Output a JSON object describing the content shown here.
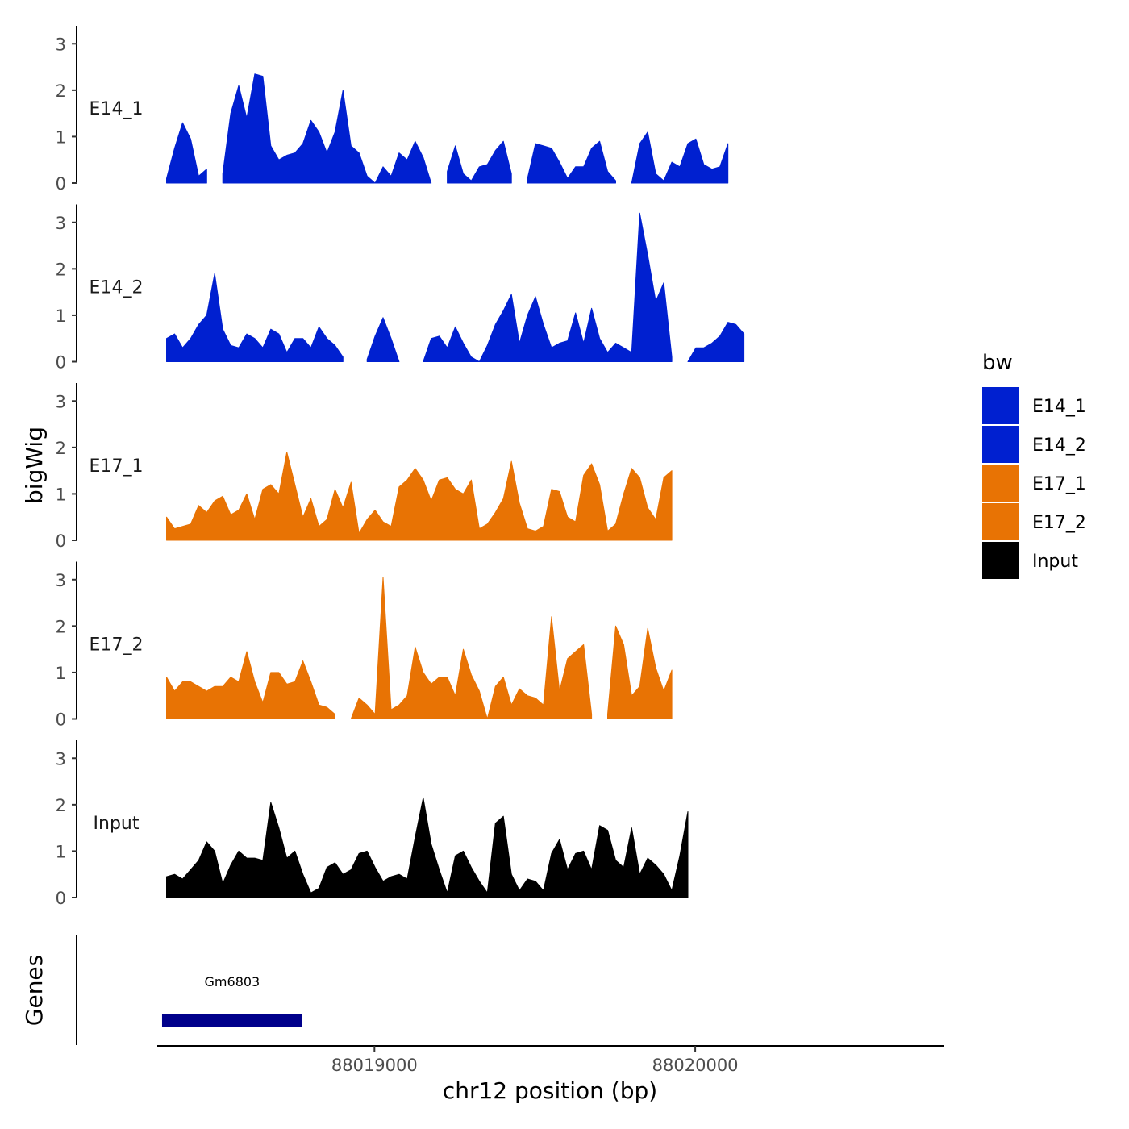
{
  "chart_data": {
    "type": "area",
    "xlabel": "chr12 position (bp)",
    "ylabel": "bigWig",
    "genes_label": "Genes",
    "xlim": [
      88018323,
      88020774
    ],
    "ylim": [
      0,
      3.3
    ],
    "y_ticks": [
      "0",
      "1",
      "2",
      "3"
    ],
    "x_ticks": [
      {
        "value": 88019000,
        "label": "88019000"
      },
      {
        "value": 88020000,
        "label": "88020000"
      }
    ],
    "legend": {
      "title": "bw",
      "entries": [
        {
          "name": "E14_1",
          "color": "#0020d0"
        },
        {
          "name": "E14_2",
          "color": "#0020d0"
        },
        {
          "name": "E17_1",
          "color": "#e87304"
        },
        {
          "name": "E17_2",
          "color": "#e87304"
        },
        {
          "name": "Input",
          "color": "#000000"
        }
      ]
    },
    "x_start": 88018352,
    "x_step": 25,
    "series": [
      {
        "name": "E14_1",
        "color": "#0020d0",
        "values": [
          0.1,
          0.75,
          1.3,
          0.95,
          0.15,
          0.3,
          null,
          0.2,
          1.5,
          2.1,
          1.4,
          2.35,
          2.3,
          0.8,
          0.5,
          0.6,
          0.65,
          0.85,
          1.35,
          1.1,
          0.65,
          1.1,
          2.0,
          0.8,
          0.65,
          0.15,
          0.0,
          0.35,
          0.15,
          0.65,
          0.5,
          0.9,
          0.55,
          0.0,
          null,
          0.25,
          0.8,
          0.2,
          0.05,
          0.35,
          0.4,
          0.7,
          0.9,
          0.2,
          null,
          0.1,
          0.85,
          0.8,
          0.75,
          0.45,
          0.1,
          0.35,
          0.35,
          0.75,
          0.9,
          0.25,
          0.05,
          null,
          0.0,
          0.85,
          1.1,
          0.2,
          0.05,
          0.45,
          0.35,
          0.85,
          0.95,
          0.4,
          0.3,
          0.35,
          0.85
        ]
      },
      {
        "name": "E14_2",
        "color": "#0020d0",
        "values": [
          0.5,
          0.6,
          0.3,
          0.5,
          0.8,
          1.0,
          1.9,
          0.7,
          0.35,
          0.3,
          0.6,
          0.5,
          0.3,
          0.7,
          0.6,
          0.2,
          0.5,
          0.5,
          0.3,
          0.75,
          0.5,
          0.35,
          0.1,
          null,
          null,
          0.05,
          0.55,
          0.95,
          0.5,
          0.0,
          null,
          null,
          0.0,
          0.5,
          0.55,
          0.3,
          0.75,
          0.4,
          0.1,
          0.0,
          0.35,
          0.8,
          1.1,
          1.45,
          0.4,
          1.0,
          1.4,
          0.8,
          0.3,
          0.4,
          0.45,
          1.05,
          0.4,
          1.15,
          0.5,
          0.2,
          0.4,
          0.3,
          0.2,
          3.2,
          2.3,
          1.3,
          1.7,
          0.1,
          null,
          0.0,
          0.3,
          0.3,
          0.4,
          0.55,
          0.85,
          0.8,
          0.6
        ]
      },
      {
        "name": "E17_1",
        "color": "#e87304",
        "values": [
          0.5,
          0.25,
          0.3,
          0.35,
          0.75,
          0.6,
          0.85,
          0.95,
          0.55,
          0.65,
          1.0,
          0.45,
          1.1,
          1.2,
          1.0,
          1.9,
          1.2,
          0.5,
          0.9,
          0.3,
          0.45,
          1.1,
          0.7,
          1.25,
          0.15,
          0.45,
          0.65,
          0.4,
          0.3,
          1.15,
          1.3,
          1.55,
          1.3,
          0.85,
          1.3,
          1.35,
          1.1,
          1.0,
          1.3,
          0.25,
          0.35,
          0.6,
          0.9,
          1.7,
          0.8,
          0.25,
          0.2,
          0.3,
          1.1,
          1.05,
          0.5,
          0.4,
          1.4,
          1.65,
          1.2,
          0.2,
          0.35,
          1.0,
          1.55,
          1.35,
          0.7,
          0.45,
          1.35,
          1.5
        ]
      },
      {
        "name": "E17_2",
        "color": "#e87304",
        "values": [
          0.9,
          0.6,
          0.8,
          0.8,
          0.7,
          0.6,
          0.7,
          0.7,
          0.9,
          0.8,
          1.45,
          0.8,
          0.35,
          1.0,
          1.0,
          0.75,
          0.8,
          1.25,
          0.8,
          0.3,
          0.25,
          0.1,
          null,
          0.0,
          0.45,
          0.3,
          0.1,
          3.05,
          0.2,
          0.3,
          0.5,
          1.55,
          1.0,
          0.75,
          0.9,
          0.9,
          0.5,
          1.5,
          0.95,
          0.6,
          0.0,
          0.7,
          0.9,
          0.3,
          0.65,
          0.5,
          0.45,
          0.3,
          2.2,
          0.6,
          1.3,
          1.45,
          1.6,
          0.1,
          null,
          0.1,
          2.0,
          1.6,
          0.5,
          0.7,
          1.95,
          1.1,
          0.6,
          1.05
        ]
      },
      {
        "name": "Input",
        "color": "#000000",
        "values": [
          0.45,
          0.5,
          0.4,
          0.6,
          0.8,
          1.2,
          1.0,
          0.3,
          0.7,
          1.0,
          0.85,
          0.85,
          0.8,
          2.05,
          1.5,
          0.85,
          1.0,
          0.5,
          0.1,
          0.2,
          0.65,
          0.75,
          0.5,
          0.6,
          0.95,
          1.0,
          0.65,
          0.35,
          0.45,
          0.5,
          0.4,
          1.3,
          2.15,
          1.15,
          0.6,
          0.1,
          0.9,
          1.0,
          0.65,
          0.35,
          0.1,
          1.6,
          1.75,
          0.5,
          0.15,
          0.4,
          0.35,
          0.15,
          0.95,
          1.25,
          0.6,
          0.95,
          1.0,
          0.6,
          1.55,
          1.45,
          0.8,
          0.65,
          1.5,
          0.5,
          0.85,
          0.7,
          0.5,
          0.15,
          0.9,
          1.85
        ]
      }
    ],
    "genes": [
      {
        "name": "Gm6803",
        "start": 88018338,
        "end": 88018775,
        "color": "#00008b"
      }
    ]
  }
}
